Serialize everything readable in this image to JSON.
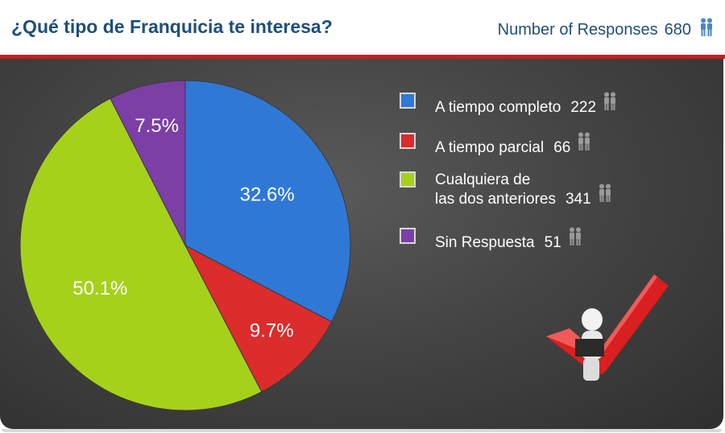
{
  "header": {
    "title": "¿Qué tipo de Franquicia te interesa?",
    "responses_label": "Number of Responses",
    "responses_count": "680",
    "responses_icon": "people-icon"
  },
  "chart_data": {
    "type": "pie",
    "title": "¿Qué tipo de Franquicia te interesa?",
    "total": 680,
    "slices": [
      {
        "label": "A tiempo completo",
        "value": 222,
        "percent": 32.6,
        "percent_label": "32.6%",
        "count": "222",
        "color": "#2f78d6"
      },
      {
        "label": "A tiempo parcial",
        "value": 66,
        "percent": 9.7,
        "percent_label": "9.7%",
        "count": "66",
        "color": "#dc2c2c"
      },
      {
        "label": "Cualquiera de\nlas dos anteriores",
        "value": 341,
        "percent": 50.1,
        "percent_label": "50.1%",
        "count": "341",
        "color": "#a6d11b"
      },
      {
        "label": "Sin Respuesta",
        "value": 51,
        "percent": 7.5,
        "percent_label": "7.5%",
        "count": "51",
        "color": "#7b3fa6"
      }
    ],
    "legend_position": "right"
  },
  "decoration": {
    "icon": "person-with-checkmark-icon"
  }
}
